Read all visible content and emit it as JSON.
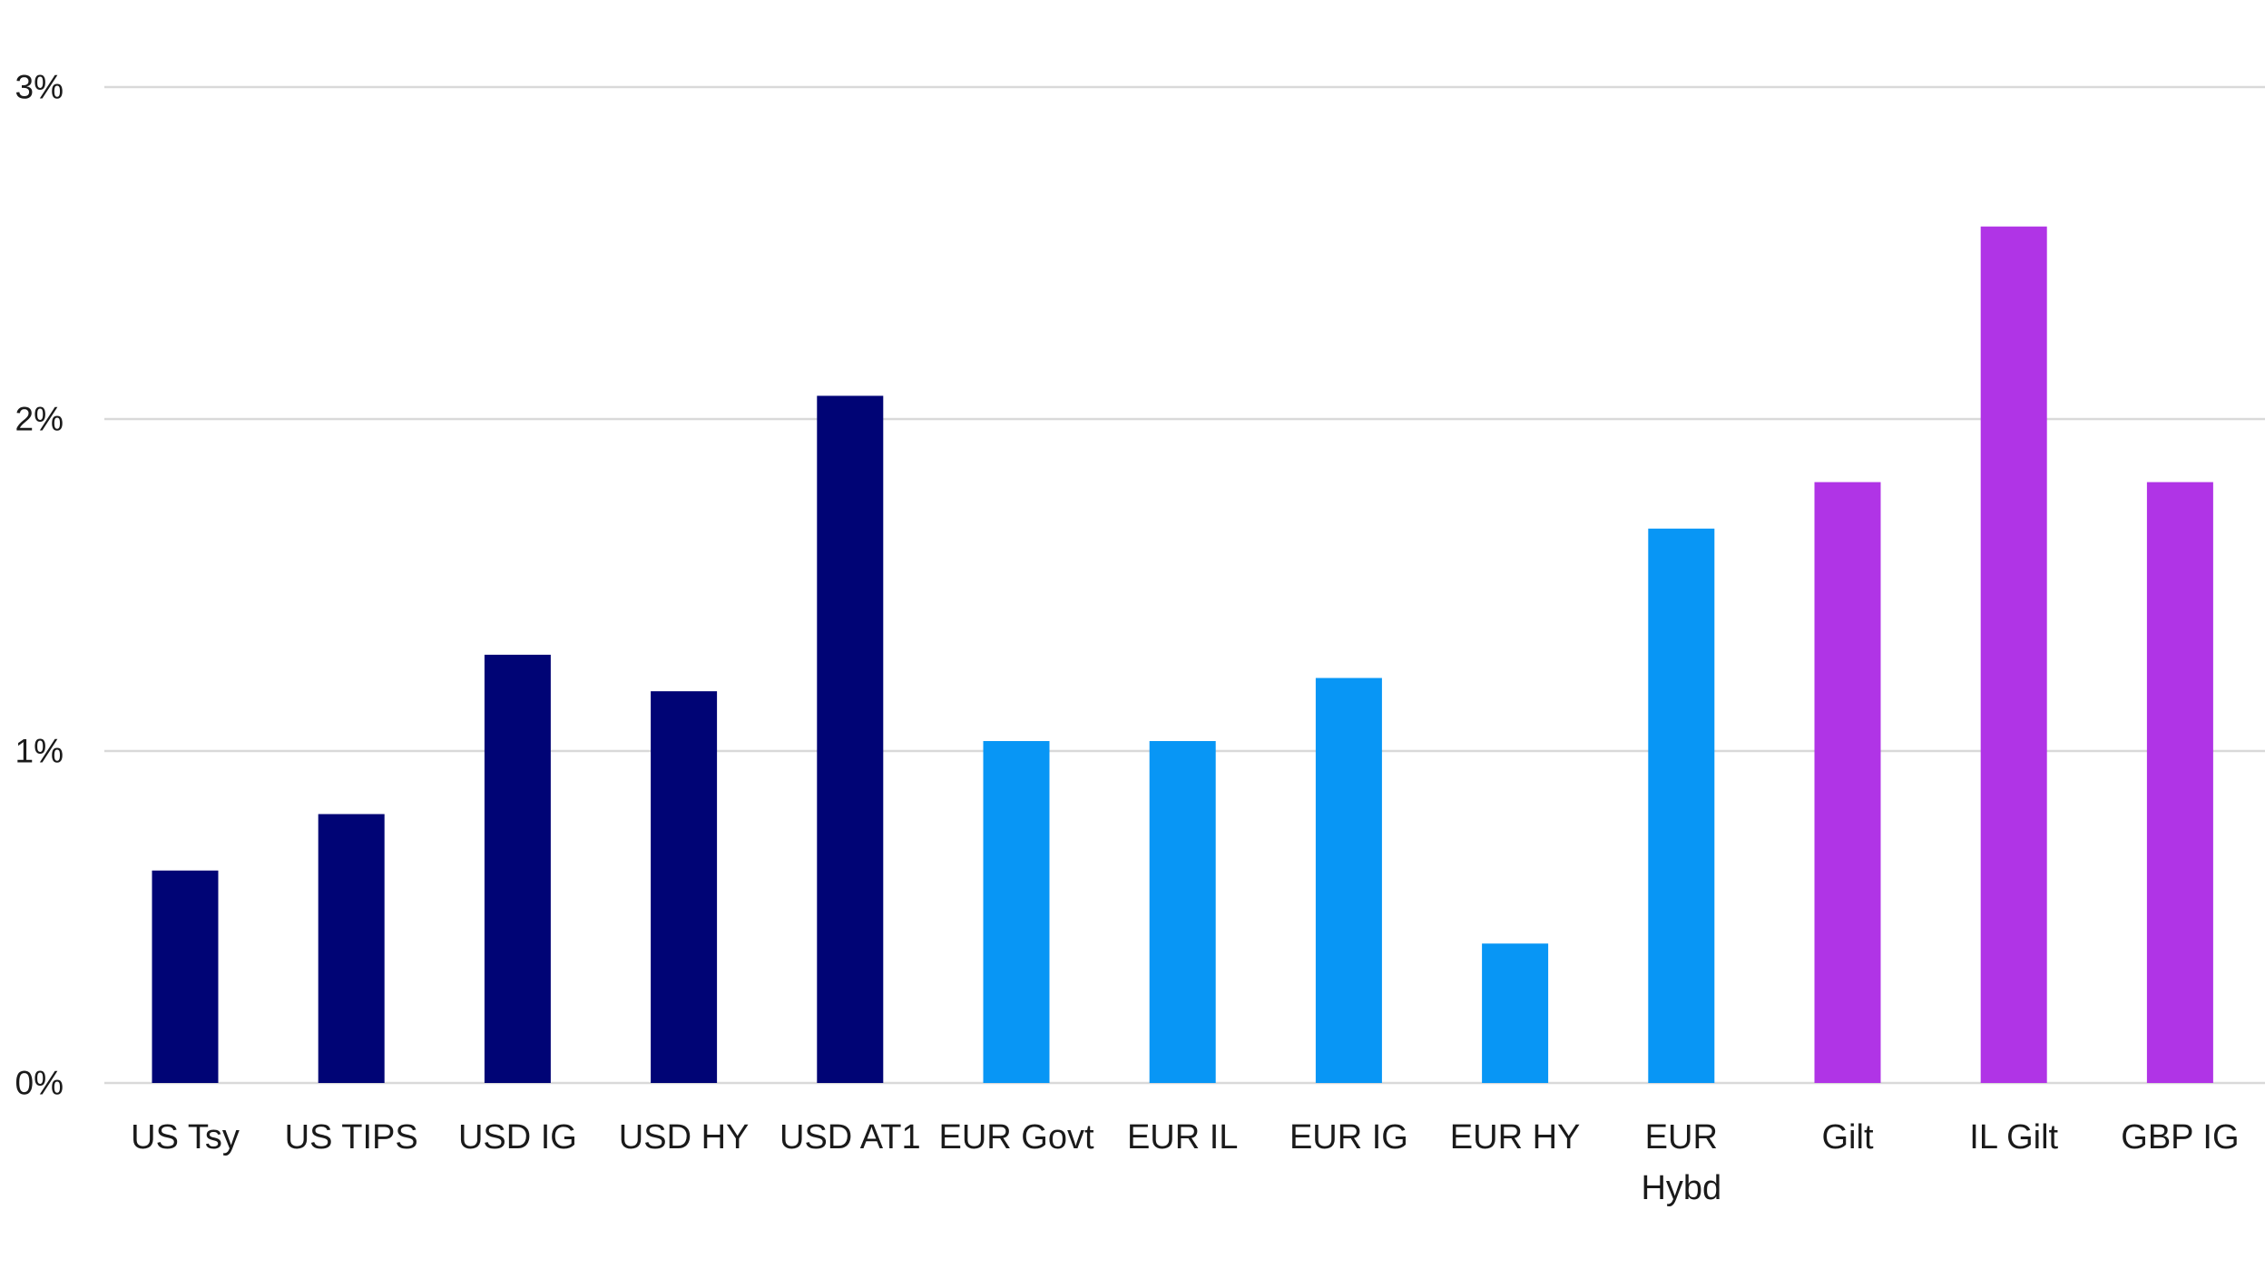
{
  "chart_data": {
    "type": "bar",
    "title": "",
    "xlabel": "",
    "ylabel": "",
    "ylim": [
      0,
      3
    ],
    "y_ticks": [
      0,
      1,
      2,
      3
    ],
    "y_tick_labels": [
      "0%",
      "1%",
      "2%",
      "3%"
    ],
    "grid": true,
    "legend": "none",
    "categories": [
      "US Tsy",
      "US TIPS",
      "USD IG",
      "USD HY",
      "USD AT1",
      "EUR Govt",
      "EUR IL",
      "EUR IG",
      "EUR HY",
      "EUR Hybd",
      "Gilt",
      "IL Gilt",
      "GBP IG"
    ],
    "category_label_lines": [
      [
        "US Tsy"
      ],
      [
        "US TIPS"
      ],
      [
        "USD IG"
      ],
      [
        "USD HY"
      ],
      [
        "USD AT1"
      ],
      [
        "EUR Govt"
      ],
      [
        "EUR IL"
      ],
      [
        "EUR IG"
      ],
      [
        "EUR HY"
      ],
      [
        "EUR",
        "Hybd"
      ],
      [
        "Gilt"
      ],
      [
        "IL Gilt"
      ],
      [
        "GBP IG"
      ]
    ],
    "values": [
      0.64,
      0.81,
      1.29,
      1.18,
      2.07,
      1.03,
      1.03,
      1.22,
      0.42,
      1.67,
      1.81,
      2.58,
      1.81
    ],
    "bar_colors": [
      "#000475",
      "#000475",
      "#000475",
      "#000475",
      "#000475",
      "#0896f5",
      "#0896f5",
      "#0896f5",
      "#0896f5",
      "#0896f5",
      "#b034e6",
      "#b034e6",
      "#b034e6"
    ],
    "colors": {
      "usd": "#000475",
      "eur": "#0896f5",
      "gbp": "#b034e6",
      "grid": "#d9d9d9",
      "text": "#1a1a1a"
    }
  }
}
